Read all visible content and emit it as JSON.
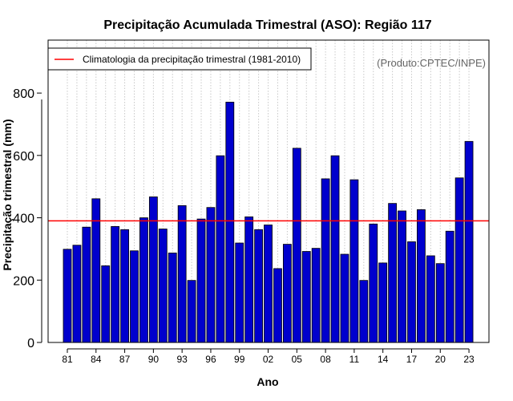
{
  "chart_data": {
    "type": "bar",
    "title": "Precipitação Acumulada Trimestral (ASO): Região 117",
    "xlabel": "Ano",
    "ylabel": "Precipitação trimestral (mm)",
    "credit": "(Produto:CPTEC/INPE)",
    "legend": {
      "label": "Climatologia da precipitação trimestral (1981-2010)",
      "placement": "top-left"
    },
    "climatology": 390,
    "ylim": [
      0,
      970
    ],
    "yticks": [
      0,
      200,
      400,
      600,
      800
    ],
    "years": [
      1981,
      1982,
      1983,
      1984,
      1985,
      1986,
      1987,
      1988,
      1989,
      1990,
      1991,
      1992,
      1993,
      1994,
      1995,
      1996,
      1997,
      1998,
      1999,
      2000,
      2001,
      2002,
      2003,
      2004,
      2005,
      2006,
      2007,
      2008,
      2009,
      2010,
      2011,
      2012,
      2013,
      2014,
      2015,
      2016,
      2017,
      2018,
      2019,
      2020,
      2021,
      2022,
      2023
    ],
    "values": [
      299,
      312,
      370,
      461,
      246,
      372,
      362,
      294,
      400,
      467,
      364,
      287,
      439,
      199,
      396,
      433,
      599,
      771,
      319,
      403,
      362,
      377,
      237,
      315,
      623,
      292,
      302,
      525,
      599,
      283,
      522,
      199,
      380,
      255,
      446,
      422,
      323,
      426,
      278,
      253,
      357,
      528,
      645
    ],
    "xtick_labels": [
      "81",
      "84",
      "87",
      "90",
      "93",
      "96",
      "99",
      "02",
      "05",
      "08",
      "11",
      "14",
      "17",
      "20",
      "23"
    ],
    "colors": {
      "bar_fill": "#0000cd",
      "bar_stroke": "#000000",
      "climatology_line": "#ff0000",
      "grid": "#c8c8c8"
    }
  }
}
